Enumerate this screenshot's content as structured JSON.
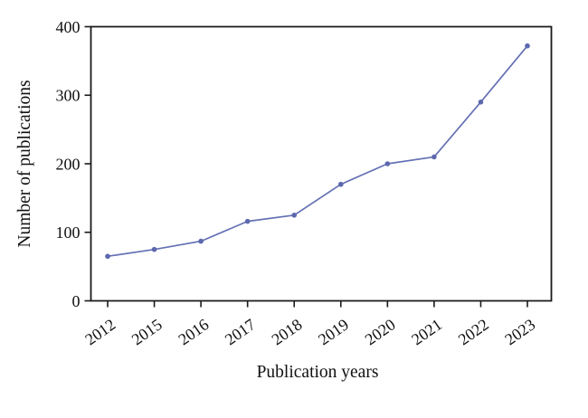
{
  "chart_data": {
    "type": "line",
    "title": "",
    "xlabel": "Publication years",
    "ylabel": "Number of publications",
    "categories": [
      "2012",
      "2015",
      "2016",
      "2017",
      "2018",
      "2019",
      "2020",
      "2021",
      "2022",
      "2023"
    ],
    "series": [
      {
        "name": "Number of publications",
        "values": [
          65,
          75,
          87,
          116,
          125,
          170,
          200,
          210,
          290,
          372
        ]
      }
    ],
    "ylim": [
      0,
      400
    ],
    "yticks": [
      0,
      100,
      200,
      300,
      400
    ],
    "grid": false,
    "legend": "none",
    "line_color": "#6470b4",
    "marker_color": "#5c68ae",
    "marker": "circle",
    "axis_color": "#1a1a1a"
  }
}
